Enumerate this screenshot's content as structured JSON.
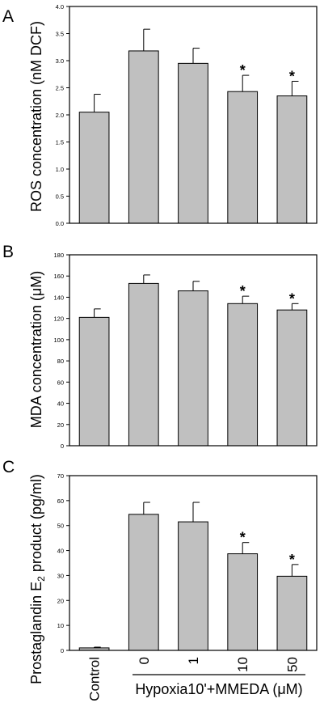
{
  "chart_data": [
    {
      "type": "bar",
      "panel_label": "A",
      "title": "",
      "xlabel": "",
      "ylabel": "ROS concentration (nM DCF)",
      "ylim": [
        0,
        4.0
      ],
      "yticks": [
        "0.0",
        "0.5",
        "1.0",
        "1.5",
        "2.0",
        "2.5",
        "3.0",
        "3.5",
        "4.0"
      ],
      "categories": [
        "Control",
        "0",
        "1",
        "10",
        "50"
      ],
      "values": [
        2.05,
        3.18,
        2.95,
        2.43,
        2.35
      ],
      "errors": [
        0.33,
        0.4,
        0.28,
        0.3,
        0.27
      ],
      "significance": [
        "",
        "",
        "",
        "*",
        "*"
      ],
      "bar_color": "#c0c0c0"
    },
    {
      "type": "bar",
      "panel_label": "B",
      "title": "",
      "xlabel": "",
      "ylabel": "MDA concentration (μM)",
      "ylim": [
        0,
        180
      ],
      "yticks": [
        "0",
        "20",
        "40",
        "60",
        "80",
        "100",
        "120",
        "140",
        "160",
        "180"
      ],
      "categories": [
        "Control",
        "0",
        "1",
        "10",
        "50"
      ],
      "values": [
        121,
        153,
        146,
        134,
        128
      ],
      "errors": [
        8,
        8,
        9,
        7,
        6
      ],
      "significance": [
        "",
        "",
        "",
        "*",
        "*"
      ],
      "bar_color": "#c0c0c0"
    },
    {
      "type": "bar",
      "panel_label": "C",
      "title": "",
      "xlabel": "",
      "ylabel_parts": {
        "pre": "Prostaglandin E",
        "sub": "2",
        "post": " product (pg/ml)"
      },
      "ylim": [
        0,
        70
      ],
      "yticks": [
        "0",
        "10",
        "20",
        "30",
        "40",
        "50",
        "60",
        "70"
      ],
      "categories": [
        "Control",
        "0",
        "1",
        "10",
        "50"
      ],
      "values": [
        1.0,
        54.5,
        51.5,
        38.7,
        29.7
      ],
      "errors": [
        0.3,
        4.8,
        7.8,
        4.5,
        4.7
      ],
      "significance": [
        "",
        "",
        "",
        "*",
        "*"
      ],
      "bar_color": "#c0c0c0"
    }
  ],
  "group_label": "Hypoxia10'+MMEDA (μM)"
}
